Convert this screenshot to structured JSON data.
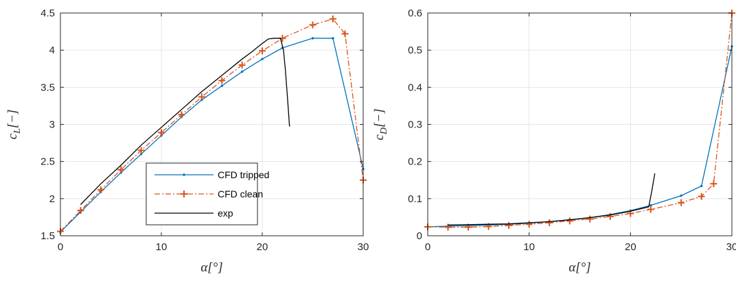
{
  "colors": {
    "tripped": "#0072BD",
    "clean": "#D95319",
    "exp": "#000000",
    "grid": "#e6e6e6",
    "axis": "#262626"
  },
  "chart_data": [
    {
      "type": "line",
      "xlabel": "α[°]",
      "ylabel": "c_L[−]",
      "xlim": [
        0,
        30
      ],
      "ylim": [
        1.5,
        4.5
      ],
      "xticks": [
        "0",
        "10",
        "20",
        "30"
      ],
      "yticks": [
        "1.5",
        "2",
        "2.5",
        "3",
        "3.5",
        "4",
        "4.5"
      ],
      "grid": true,
      "legend": "lower-center",
      "series": [
        {
          "name": "CFD tripped",
          "marker": "dot",
          "x": [
            0,
            2,
            4,
            6,
            8,
            10,
            12,
            14,
            16,
            18,
            20,
            22,
            25,
            27,
            30
          ],
          "y": [
            1.55,
            1.82,
            2.09,
            2.35,
            2.6,
            2.85,
            3.1,
            3.33,
            3.52,
            3.71,
            3.88,
            4.03,
            4.16,
            4.16,
            2.4
          ]
        },
        {
          "name": "CFD clean",
          "marker": "plus",
          "x": [
            0,
            2,
            4,
            6,
            8,
            10,
            12,
            14,
            16,
            18,
            20,
            22,
            25,
            27,
            28.2,
            30
          ],
          "y": [
            1.56,
            1.84,
            2.12,
            2.39,
            2.65,
            2.89,
            3.13,
            3.37,
            3.59,
            3.8,
            3.99,
            4.16,
            4.34,
            4.42,
            4.22,
            2.25
          ]
        },
        {
          "name": "exp",
          "marker": "none",
          "x": [
            2,
            4,
            6,
            8,
            10,
            12,
            14,
            16,
            18,
            19,
            19.8,
            20.6,
            21.2,
            21.8,
            22.1,
            22.3,
            22.5,
            22.7
          ],
          "y": [
            1.92,
            2.2,
            2.45,
            2.72,
            2.96,
            3.2,
            3.44,
            3.66,
            3.88,
            3.98,
            4.07,
            4.15,
            4.16,
            4.16,
            4.0,
            3.72,
            3.35,
            2.97
          ]
        }
      ]
    },
    {
      "type": "line",
      "xlabel": "α[°]",
      "ylabel": "c_D[−]",
      "xlim": [
        0,
        30
      ],
      "ylim": [
        0,
        0.6
      ],
      "xticks": [
        "0",
        "10",
        "20",
        "30"
      ],
      "yticks": [
        "0",
        "0.1",
        "0.2",
        "0.3",
        "0.4",
        "0.5",
        "0.6"
      ],
      "grid": true,
      "series": [
        {
          "name": "CFD tripped",
          "marker": "dot",
          "x": [
            0,
            2,
            4,
            6,
            8,
            10,
            12,
            14,
            16,
            18,
            20,
            22,
            25,
            27,
            30
          ],
          "y": [
            0.024,
            0.026,
            0.027,
            0.029,
            0.031,
            0.034,
            0.038,
            0.043,
            0.049,
            0.057,
            0.068,
            0.082,
            0.108,
            0.134,
            0.51
          ]
        },
        {
          "name": "CFD clean",
          "marker": "plus",
          "x": [
            0,
            2,
            4,
            6,
            8,
            10,
            12,
            14,
            16,
            18,
            20,
            22,
            25,
            27,
            28.2,
            30
          ],
          "y": [
            0.024,
            0.023,
            0.023,
            0.025,
            0.028,
            0.031,
            0.035,
            0.04,
            0.045,
            0.052,
            0.06,
            0.071,
            0.089,
            0.106,
            0.14,
            0.6
          ]
        },
        {
          "name": "exp",
          "marker": "none",
          "x": [
            2,
            4,
            6,
            8,
            10,
            12,
            14,
            16,
            18,
            20,
            21.8,
            22.1,
            22.4
          ],
          "y": [
            0.029,
            0.03,
            0.031,
            0.032,
            0.035,
            0.038,
            0.043,
            0.049,
            0.056,
            0.066,
            0.078,
            0.12,
            0.168
          ]
        }
      ]
    }
  ]
}
